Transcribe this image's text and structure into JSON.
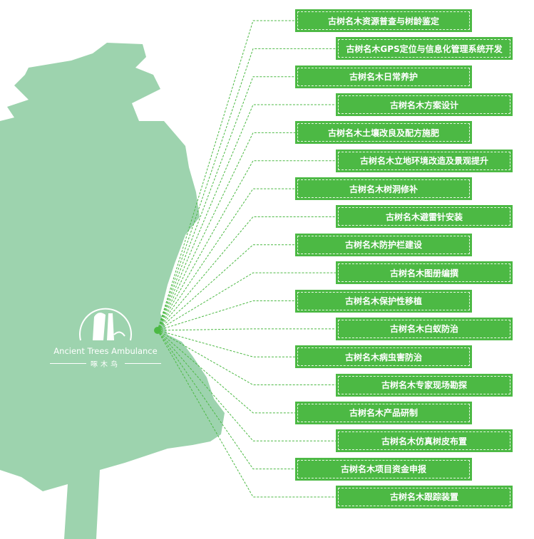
{
  "logo": {
    "name_en": "Ancient Trees Ambulance",
    "name_cn": "啄木鸟"
  },
  "colors": {
    "tree": "#9dd3ae",
    "box": "#4cb944",
    "line": "#4cb944"
  },
  "services": [
    {
      "label": "古树名木资源普查与树龄鉴定"
    },
    {
      "label": "古树名木GPS定位与信息化管理系统开发"
    },
    {
      "label": "古树名木日常养护"
    },
    {
      "label": "古树名木方案设计"
    },
    {
      "label": "古树名木土壤改良及配方施肥"
    },
    {
      "label": "古树名木立地环境改造及景观提升"
    },
    {
      "label": "古树名木树洞修补"
    },
    {
      "label": "古树名木避雷针安装"
    },
    {
      "label": "古树名木防护栏建设"
    },
    {
      "label": "古树名木图册编撰"
    },
    {
      "label": "古树名木保护性移植"
    },
    {
      "label": "古树名木白蚁防治"
    },
    {
      "label": "古树名木病虫害防治"
    },
    {
      "label": "古树名木专家现场勘探"
    },
    {
      "label": "古树名木产品研制"
    },
    {
      "label": "古树名木仿真树皮布置"
    },
    {
      "label": "古树名木项目资金申报"
    },
    {
      "label": "古树名木跟踪装置"
    }
  ]
}
